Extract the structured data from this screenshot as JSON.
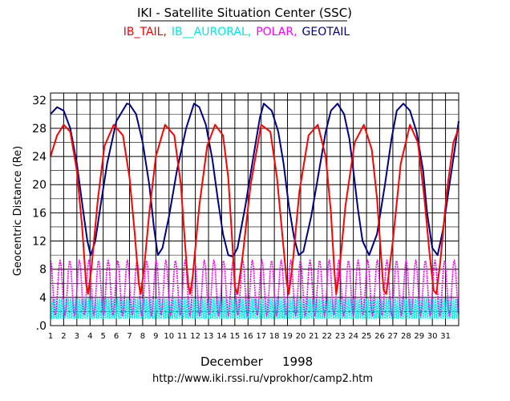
{
  "title": "IKI - Satellite Situation Center (SSC)",
  "legend": [
    {
      "label": "IB_TAIL,",
      "color": "#ff0000"
    },
    {
      "label": "IB__AURORAL,",
      "color": "#00e5e5"
    },
    {
      "label": "POLAR,",
      "color": "#ff00ff"
    },
    {
      "label": "GEOTAIL",
      "color": "#000080"
    }
  ],
  "footer": {
    "month": "December",
    "year": "1998",
    "url": "http://www.iki.rssi.ru/vprokhor/camp2.htm"
  },
  "chart_data": {
    "type": "line",
    "title": "IKI - Satellite Situation Center (SSC)",
    "xlabel": "December 1998",
    "ylabel": "Geocentric Distance (Re)",
    "xlim": [
      1,
      32
    ],
    "ylim": [
      0,
      33
    ],
    "x_ticks": [
      "1",
      "2",
      "3",
      "4",
      "5",
      "6",
      "7",
      "8",
      "9",
      "10",
      "11",
      "12",
      "13",
      "14",
      "15",
      "16",
      "17",
      "18",
      "19",
      "20",
      "21",
      "22",
      "23",
      "24",
      "25",
      "26",
      "27",
      "28",
      "29",
      "30",
      "31"
    ],
    "y_ticks": [
      ".0",
      "4",
      "8",
      "12",
      "16",
      "20",
      "24",
      "28",
      "32"
    ],
    "y_tick_values": [
      0,
      4,
      8,
      12,
      16,
      20,
      24,
      28,
      32
    ],
    "grid": true,
    "series": [
      {
        "name": "GEOTAIL",
        "color": "#000080",
        "x": [
          1.0,
          1.5,
          2.0,
          2.5,
          3.0,
          3.5,
          3.8,
          4.05,
          4.4,
          4.8,
          5.3,
          6.0,
          6.8,
          7.0,
          7.5,
          8.0,
          8.5,
          8.85,
          9.15,
          9.5,
          10.0,
          10.6,
          11.3,
          11.9,
          12.3,
          12.8,
          13.3,
          13.7,
          14.1,
          14.5,
          14.85,
          15.2,
          15.8,
          16.5,
          16.9,
          17.2,
          17.8,
          18.3,
          18.7,
          19.1,
          19.5,
          19.85,
          20.2,
          20.8,
          21.4,
          21.9,
          22.3,
          22.8,
          23.3,
          23.7,
          24.0,
          24.35,
          24.7,
          25.2,
          25.8,
          26.4,
          26.9,
          27.3,
          27.8,
          28.3,
          28.8,
          29.3,
          29.6,
          30.0,
          30.4,
          30.8,
          31.3,
          31.7,
          32.0
        ],
        "y": [
          30.0,
          31.0,
          30.5,
          28.0,
          23.0,
          16.0,
          12.0,
          10.0,
          12.0,
          17.0,
          23.0,
          29.0,
          31.5,
          31.4,
          30.0,
          26.0,
          20.0,
          14.0,
          10.0,
          11.0,
          15.5,
          22.0,
          28.0,
          31.5,
          31.0,
          28.5,
          23.5,
          18.0,
          13.0,
          10.0,
          9.8,
          11.0,
          17.0,
          25.0,
          29.5,
          31.5,
          30.5,
          27.5,
          23.0,
          17.0,
          12.5,
          10.0,
          10.5,
          15.5,
          22.0,
          27.5,
          30.5,
          31.5,
          30.0,
          26.5,
          22.0,
          16.5,
          12.0,
          10.0,
          13.0,
          20.0,
          26.5,
          30.5,
          31.5,
          30.5,
          27.5,
          22.0,
          16.0,
          11.0,
          10.0,
          13.5,
          20.0,
          25.0,
          29.0
        ]
      },
      {
        "name": "IB_TAIL",
        "color": "#ff0000",
        "x": [
          1.0,
          1.5,
          2.0,
          2.5,
          3.0,
          3.4,
          3.7,
          3.85,
          4.1,
          4.6,
          5.1,
          5.8,
          6.5,
          7.0,
          7.4,
          7.7,
          7.85,
          8.1,
          8.5,
          9.0,
          9.7,
          10.4,
          10.9,
          11.2,
          11.45,
          11.6,
          11.8,
          12.3,
          12.9,
          13.5,
          14.1,
          14.5,
          14.8,
          15.0,
          15.2,
          15.6,
          16.2,
          17.0,
          17.7,
          18.2,
          18.6,
          18.95,
          19.1,
          19.4,
          19.9,
          20.6,
          21.3,
          21.9,
          22.3,
          22.55,
          22.7,
          22.9,
          23.4,
          24.1,
          24.8,
          25.4,
          25.8,
          26.1,
          26.3,
          26.5,
          27.0,
          27.6,
          28.3,
          28.9,
          29.4,
          29.8,
          30.1,
          30.3,
          30.6,
          31.1,
          31.6,
          32.0
        ],
        "y": [
          24.0,
          27.0,
          28.5,
          27.5,
          22.0,
          14.0,
          6.0,
          4.5,
          8.0,
          18.0,
          25.5,
          28.5,
          27.0,
          21.0,
          13.0,
          6.0,
          4.5,
          8.0,
          16.0,
          24.0,
          28.5,
          27.0,
          20.0,
          12.0,
          6.0,
          4.5,
          7.0,
          17.0,
          25.5,
          28.5,
          27.0,
          21.0,
          12.0,
          5.5,
          4.5,
          10.0,
          20.0,
          28.5,
          27.5,
          21.0,
          13.0,
          6.0,
          4.5,
          9.0,
          19.0,
          27.0,
          28.5,
          24.0,
          16.0,
          8.0,
          4.5,
          7.0,
          17.0,
          26.0,
          28.5,
          25.0,
          18.0,
          10.0,
          5.0,
          4.5,
          12.0,
          23.0,
          28.5,
          26.0,
          18.0,
          10.0,
          5.0,
          4.5,
          9.0,
          19.0,
          26.0,
          28.0
        ]
      },
      {
        "name": "POLAR",
        "color": "#ff00ff",
        "period_days": 0.73,
        "min": 1.5,
        "max": 9.2
      },
      {
        "name": "IB__AURORAL",
        "color": "#00e5e5",
        "period_days": 0.17,
        "min": 1.0,
        "max": 3.8
      }
    ]
  }
}
